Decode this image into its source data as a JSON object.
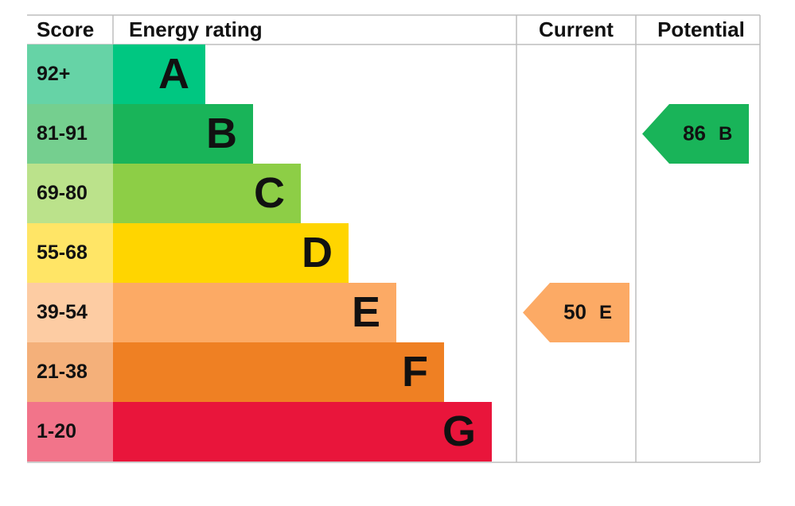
{
  "header": {
    "score": "Score",
    "rating": "Energy rating",
    "current": "Current",
    "potential": "Potential"
  },
  "bands": [
    {
      "score": "92+",
      "letter": "A",
      "color": "#00c781",
      "score_color": "#66d3a6"
    },
    {
      "score": "81-91",
      "letter": "B",
      "color": "#19b459",
      "score_color": "#75cf8f"
    },
    {
      "score": "69-80",
      "letter": "C",
      "color": "#8dce46",
      "score_color": "#bbe28b"
    },
    {
      "score": "55-68",
      "letter": "D",
      "color": "#ffd500",
      "score_color": "#ffe566"
    },
    {
      "score": "39-54",
      "letter": "E",
      "color": "#fcaa65",
      "score_color": "#fdcca3"
    },
    {
      "score": "21-38",
      "letter": "F",
      "color": "#ef8023",
      "score_color": "#f4b07a"
    },
    {
      "score": "1-20",
      "letter": "G",
      "color": "#e9153b",
      "score_color": "#f2748a"
    }
  ],
  "current": {
    "value": 50,
    "band": "E"
  },
  "potential": {
    "value": 86,
    "band": "B"
  }
}
